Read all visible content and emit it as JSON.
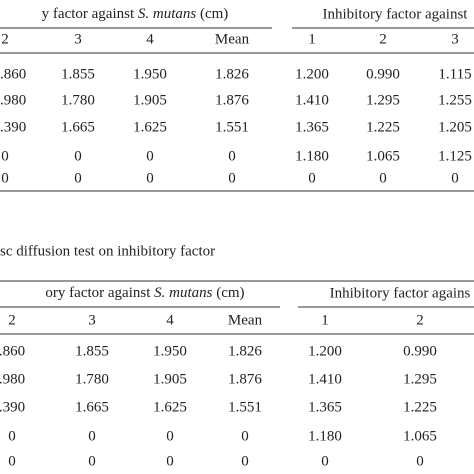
{
  "table1": {
    "header": {
      "left": [
        "y factor against ",
        "S. mutans",
        " (cm)"
      ],
      "right": "Inhibitory factor against"
    },
    "columns": [
      "2",
      "3",
      "4",
      "Mean",
      "1",
      "2",
      "3"
    ],
    "rows": [
      [
        ".860",
        "1.855",
        "1.950",
        "1.826",
        "1.200",
        "0.990",
        "1.115"
      ],
      [
        ".980",
        "1.780",
        "1.905",
        "1.876",
        "1.410",
        "1.295",
        "1.255"
      ],
      [
        ".390",
        "1.665",
        "1.625",
        "1.551",
        "1.365",
        "1.225",
        "1.205"
      ],
      [
        "0",
        "0",
        "0",
        "0",
        "1.180",
        "1.065",
        "1.125"
      ],
      [
        "0",
        "0",
        "0",
        "0",
        "0",
        "0",
        "0"
      ]
    ]
  },
  "caption": "sc diffusion test on inhibitory factor",
  "table2": {
    "header": {
      "left": [
        "ory factor against ",
        "S. mutans",
        " (cm)"
      ],
      "right": "Inhibitory factor agains"
    },
    "columns": [
      "2",
      "3",
      "4",
      "Mean",
      "1",
      "2"
    ],
    "rows": [
      [
        ".860",
        "1.855",
        "1.950",
        "1.826",
        "1.200",
        "0.990"
      ],
      [
        ".980",
        "1.780",
        "1.905",
        "1.876",
        "1.410",
        "1.295"
      ],
      [
        ".390",
        "1.665",
        "1.625",
        "1.551",
        "1.365",
        "1.225"
      ],
      [
        "0",
        "0",
        "0",
        "0",
        "1.180",
        "1.065"
      ],
      [
        "0",
        "0",
        "0",
        "0",
        "0",
        "0"
      ]
    ]
  }
}
